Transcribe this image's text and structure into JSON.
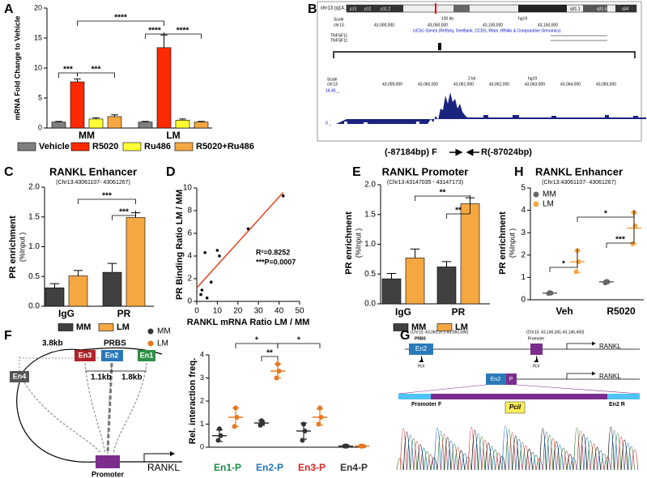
{
  "chart_data": [
    {
      "type": "bar",
      "panel_label": "A",
      "ylabel": "mRNA Fold Change to Vehicle",
      "categories": [
        "MM",
        "LM"
      ],
      "series": [
        {
          "name": "Vehicle",
          "color": "#7f7f7f",
          "values": [
            1,
            1
          ],
          "errors": [
            0.1,
            0.1
          ]
        },
        {
          "name": "R5020",
          "color": "#ff2a00",
          "values": [
            7.7,
            13.4
          ],
          "errors": [
            0.5,
            2.1
          ]
        },
        {
          "name": "Ru486",
          "color": "#ffff33",
          "values": [
            1.5,
            1.3
          ],
          "errors": [
            0.2,
            0.2
          ]
        },
        {
          "name": "R5020+Ru486",
          "color": "#f5a742",
          "values": [
            1.9,
            1.0
          ],
          "errors": [
            0.3,
            0.1
          ]
        }
      ],
      "ylim": [
        0,
        20
      ],
      "yticks": [
        0,
        5,
        10,
        15,
        20
      ],
      "annotations": [
        "***",
        "***",
        "****",
        "****",
        "****"
      ]
    },
    {
      "type": "bar",
      "panel_label": "C",
      "title": "RANKL Enhancer",
      "subtitle": "(Chr13:43061107- 43061267)",
      "ylabel": "PR enrichment",
      "ylabel_unit": "(%Input )",
      "categories": [
        "IgG",
        "PR"
      ],
      "series": [
        {
          "name": "MM",
          "color": "#404040",
          "values": [
            0.31,
            0.57
          ],
          "errors": [
            0.07,
            0.15
          ]
        },
        {
          "name": "LM",
          "color": "#f5a742",
          "values": [
            0.51,
            1.49
          ],
          "errors": [
            0.09,
            0.08
          ]
        }
      ],
      "ylim": [
        0,
        2
      ],
      "yticks": [
        {
          "value": 0,
          "label": "0.0"
        },
        0.5,
        {
          "value": 1,
          "label": "1.0"
        },
        1.5,
        {
          "value": 2,
          "label": "2.0"
        }
      ],
      "annotations": [
        "***",
        "***"
      ]
    },
    {
      "type": "scatter",
      "panel_label": "D",
      "xlabel": "RANKL mRNA Ratio LM / MM",
      "ylabel": "PR Binding Ratio LM / MM",
      "x": [
        2,
        2.5,
        4,
        5,
        7,
        10,
        11,
        25,
        42
      ],
      "values": [
        0.6,
        1.0,
        4.3,
        0.3,
        1.7,
        4.5,
        4.0,
        6.4,
        9.3
      ],
      "color": "#000000",
      "trendline": {
        "x": [
          0,
          42
        ],
        "values": [
          1.2,
          9.6
        ],
        "color": "#e8431c"
      },
      "xlim": [
        0,
        50
      ],
      "xticks": [
        0,
        10,
        20,
        30,
        40,
        50
      ],
      "ylim": [
        0,
        10
      ],
      "yticks": [
        0,
        2,
        4,
        6,
        8,
        10
      ],
      "annotations": [
        "R²=0.8252",
        "***P=0.0007"
      ]
    },
    {
      "type": "bar",
      "panel_label": "E",
      "title": "RANKL Promoter",
      "subtitle": "(Chr13:43147035 - 43147173)",
      "ylabel": "PR enrichment",
      "ylabel_unit": "(%Input )",
      "categories": [
        "IgG",
        "PR"
      ],
      "series": [
        {
          "name": "MM",
          "color": "#404040",
          "values": [
            0.42,
            0.62
          ],
          "errors": [
            0.09,
            0.09
          ]
        },
        {
          "name": "LM",
          "color": "#f5a742",
          "values": [
            0.77,
            1.68
          ],
          "errors": [
            0.15,
            0.1
          ]
        }
      ],
      "ylim": [
        0,
        2
      ],
      "yticks": [
        {
          "value": 0,
          "label": "0.0"
        },
        0.5,
        {
          "value": 1,
          "label": "1.0"
        },
        1.5,
        {
          "value": 2,
          "label": "2.0"
        }
      ],
      "annotations": [
        "**",
        "**"
      ]
    },
    {
      "type": "dotplot",
      "panel_label": "H",
      "title": "RANKL Enhancer",
      "subtitle": "(Chr13:43061107- 43061267)",
      "ylabel": "PR enrichment",
      "ylabel_unit": "(%Input )",
      "categories": [
        "Veh",
        "R5020"
      ],
      "series": [
        {
          "name": "MM",
          "color": "#666666",
          "values": [
            [
              0.28,
              0.32,
              0.3
            ],
            [
              0.75,
              0.82,
              0.8
            ]
          ],
          "means": [
            0.3,
            0.8
          ],
          "sds": [
            0.02,
            0.04
          ]
        },
        {
          "name": "LM",
          "color": "#f5a742",
          "values": [
            [
              1.25,
              2.2,
              1.7
            ],
            [
              2.5,
              3.9,
              3.3
            ]
          ],
          "means": [
            1.7,
            3.2
          ],
          "sds": [
            0.48,
            0.7
          ]
        }
      ],
      "ylim": [
        0,
        5
      ],
      "yticks": [
        0,
        1,
        2,
        3,
        4,
        5
      ],
      "annotations": [
        "*",
        "*",
        "***"
      ]
    },
    {
      "type": "dotplot",
      "panel_label": "F",
      "ylabel": "Rel. interaction freq.",
      "categories": [
        "En1-P",
        "En2-P",
        "En3-P",
        "En4-P"
      ],
      "category_colors": [
        "#1a8a4a",
        "#1f77b4",
        "#d62728",
        "#333333"
      ],
      "series": [
        {
          "name": "MM",
          "color": "#333333",
          "values": [
            [
              0.3,
              0.8,
              0.5
            ],
            [
              0.95,
              1.15,
              1.05
            ],
            [
              0.3,
              1.0,
              0.7
            ],
            [
              0.05,
              0.05,
              0.05
            ]
          ],
          "means": [
            0.5,
            1.05,
            0.7,
            0.05
          ],
          "sds": [
            0.25,
            0.1,
            0.35,
            0.02
          ]
        },
        {
          "name": "LM",
          "color": "#e87722",
          "values": [
            [
              0.9,
              1.7,
              1.3
            ],
            [
              3.0,
              3.6,
              3.3
            ],
            [
              1.0,
              1.7,
              1.3
            ],
            [
              0.05,
              0.05,
              0.05
            ]
          ],
          "means": [
            1.3,
            3.3,
            1.3,
            0.05
          ],
          "sds": [
            0.4,
            0.3,
            0.35,
            0.02
          ]
        }
      ],
      "ylim": [
        0,
        4
      ],
      "yticks": [
        0,
        1,
        2,
        3,
        4
      ],
      "annotations": [
        "*",
        "**",
        "*"
      ]
    }
  ],
  "genome_browser": {
    "panel_label": "B",
    "chromosome": "chr13 (q14.11)",
    "bands": [
      "p13",
      "p12",
      "p11.2",
      "q31.1",
      "q31.3",
      "q34"
    ],
    "track1": {
      "scale": "Scale",
      "chrom": "chr13:",
      "scale_bar": "100 kb",
      "assembly": "hg19",
      "positions": [
        "43,000,000",
        "43,050,000",
        "43,100,000",
        "43,150,000"
      ],
      "genes_track": "UCSC Genes (RefSeq, GenBank, CCDS, Rfam, tRNAs & Comparative Genomics)",
      "genes": [
        "TNFSF11",
        "TNFSF11"
      ]
    },
    "track2": {
      "scale": "Scale",
      "chrom": "chr13:",
      "scale_bar": "2 kb",
      "assembly": "hg19",
      "positions": [
        "43,059,000",
        "43,060,000",
        "43,061,000",
        "43,062,000",
        "43,063,000",
        "43,064,000",
        "43,065,000"
      ],
      "coverage_max": "16.45 _",
      "coverage_min": "0 _"
    },
    "primer_f": "(-87184bp) F",
    "primer_r": "R(-87024bp)"
  },
  "diagram_f": {
    "distance_1": "3.8kb",
    "prbs": "PRBS",
    "enhancers": [
      "En3",
      "En2",
      "En1",
      "En4"
    ],
    "distance_2": "1.1kb",
    "distance_3": "1.8kb",
    "gene": "RANKL",
    "promoter": "Promoter"
  },
  "diagram_g": {
    "panel_label": "G",
    "coords_1": "(Chr13: 43,060,371-43,060,586)",
    "prbs": "PRBS",
    "enhancer": "En2",
    "site_1": "PciI",
    "coords_2": "(Chr13: 43,146,341-43,146,493)",
    "promoter": "Promoter",
    "site_2": "PciI",
    "gene_1": "RANKL",
    "fusion_en": "En2",
    "fusion_p": "P",
    "gene_2": "RANKL",
    "primer_f": "Promoter F",
    "site_3": "PciI",
    "primer_r": "En2 R"
  }
}
